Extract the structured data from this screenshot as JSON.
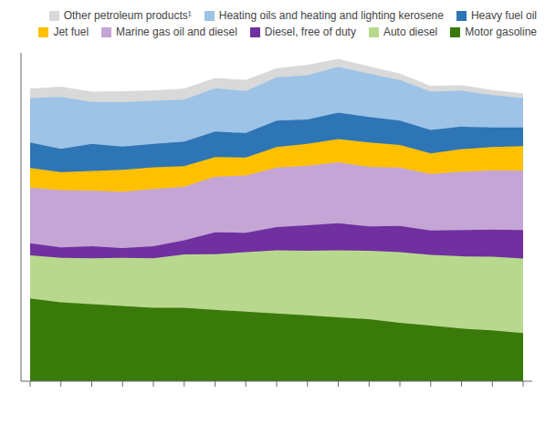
{
  "chart_data": {
    "type": "area",
    "stacked": true,
    "categories": [
      null,
      null,
      null,
      null,
      null,
      null,
      null,
      null,
      null,
      null,
      null,
      null,
      null,
      null,
      null,
      null,
      null
    ],
    "series": [
      {
        "name": "Motor gasoline",
        "color": "#3a7a0a",
        "values": [
          220,
          210,
          205,
          200,
          195,
          195,
          190,
          185,
          180,
          175,
          170,
          165,
          155,
          148,
          140,
          135,
          128
        ]
      },
      {
        "name": "Auto diesel",
        "color": "#b8d98d",
        "values": [
          115,
          118,
          122,
          128,
          132,
          142,
          148,
          158,
          168,
          172,
          178,
          182,
          188,
          188,
          192,
          196,
          198
        ]
      },
      {
        "name": "Diesel, free of duty",
        "color": "#7030a0",
        "values": [
          32,
          28,
          32,
          26,
          32,
          38,
          58,
          52,
          62,
          68,
          72,
          65,
          70,
          65,
          70,
          72,
          76
        ]
      },
      {
        "name": "Marine gas oil and diesel",
        "color": "#c4a5d5",
        "values": [
          148,
          152,
          148,
          150,
          152,
          142,
          148,
          152,
          158,
          158,
          162,
          158,
          155,
          150,
          155,
          158,
          158
        ]
      },
      {
        "name": "Jet fuel",
        "color": "#ffc000",
        "values": [
          52,
          48,
          52,
          58,
          58,
          55,
          52,
          48,
          55,
          58,
          62,
          65,
          60,
          55,
          60,
          62,
          65
        ]
      },
      {
        "name": "Heavy fuel oil",
        "color": "#2e75b6",
        "values": [
          68,
          62,
          72,
          62,
          62,
          65,
          68,
          65,
          70,
          65,
          70,
          68,
          65,
          62,
          60,
          52,
          50
        ]
      },
      {
        "name": "Heating oils and heating and lighting kerosene",
        "color": "#9dc3e6",
        "values": [
          118,
          138,
          112,
          118,
          115,
          112,
          115,
          112,
          115,
          118,
          122,
          115,
          108,
          102,
          96,
          86,
          78
        ]
      },
      {
        "name": "Other petroleum products¹",
        "color": "#d9d9d9",
        "values": [
          24,
          26,
          26,
          28,
          26,
          28,
          26,
          28,
          23,
          26,
          20,
          18,
          16,
          14,
          13,
          12,
          11
        ]
      }
    ],
    "ylim": [
      0,
      873.12
    ],
    "yticks": [],
    "grid": false,
    "legend": "upper right",
    "tick_labels": false
  }
}
